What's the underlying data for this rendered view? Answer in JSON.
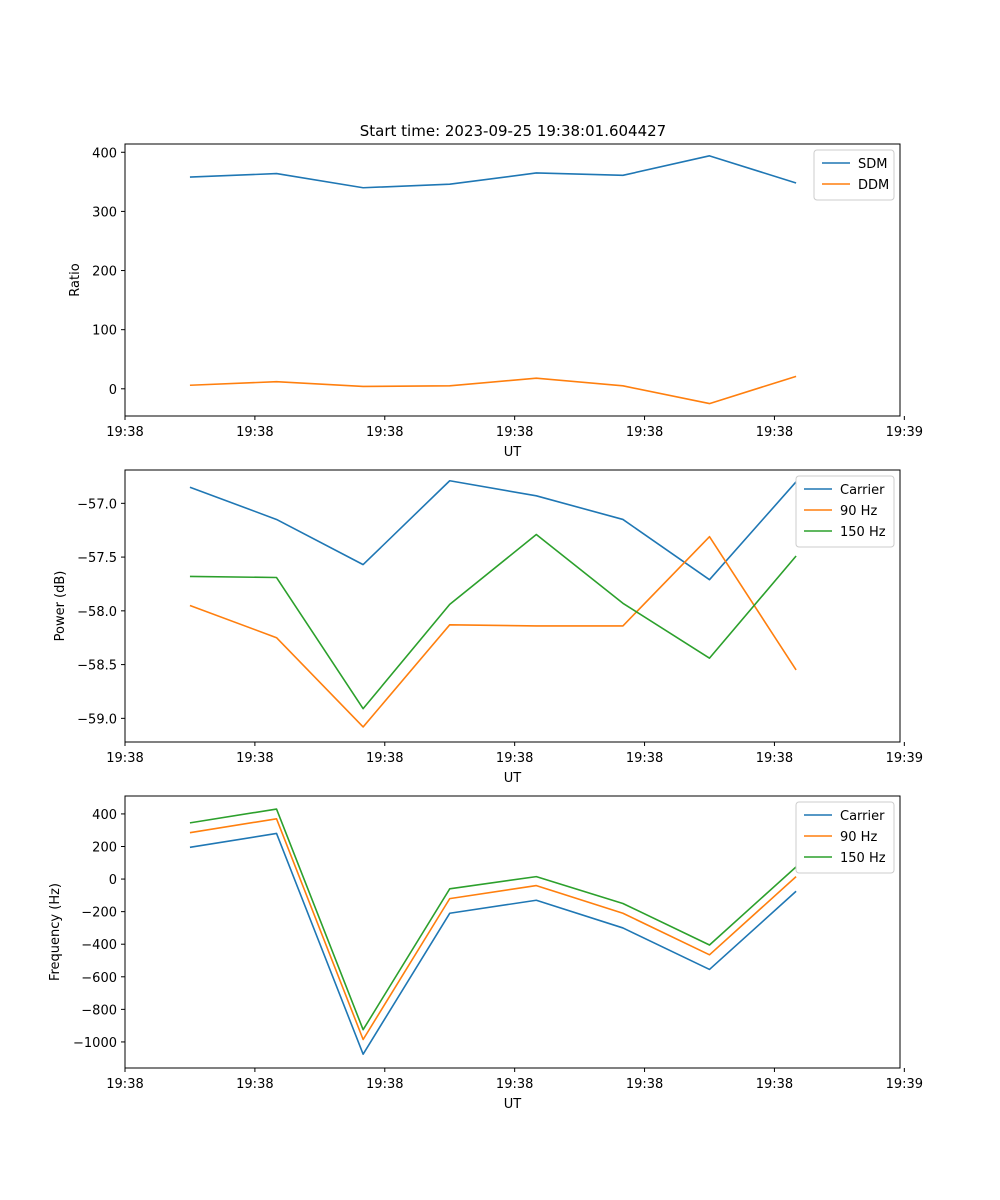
{
  "figure_title": "Start time: 2023-09-25 19:38:01.604427",
  "colors": {
    "c0": "#1f77b4",
    "c1": "#ff7f0e",
    "c2": "#2ca02c"
  },
  "chart_data": [
    {
      "type": "line",
      "title": "Start time: 2023-09-25 19:38:01.604427",
      "xlabel": "UT",
      "ylabel": "Ratio",
      "x": [
        1,
        2,
        3,
        4,
        5,
        6,
        7,
        8
      ],
      "xlim": [
        0.25,
        9.2
      ],
      "xticks": [
        0.25,
        1.75,
        3.25,
        4.75,
        6.25,
        7.75,
        9.25
      ],
      "xticklabels": [
        "19:38",
        "19:38",
        "19:38",
        "19:38",
        "19:38",
        "19:38",
        "19:39"
      ],
      "ylim": [
        -46,
        414
      ],
      "yticks": [
        0,
        100,
        200,
        300,
        400
      ],
      "yticklabels": [
        "0",
        "100",
        "200",
        "300",
        "400"
      ],
      "legend_position": "top-right",
      "series": [
        {
          "name": "SDM",
          "color": "#1f77b4",
          "values": [
            358,
            364,
            340,
            346,
            365,
            361,
            394,
            348
          ]
        },
        {
          "name": "DDM",
          "color": "#ff7f0e",
          "values": [
            6,
            12,
            4,
            5,
            18,
            5,
            -25,
            21
          ]
        }
      ]
    },
    {
      "type": "line",
      "title": "",
      "xlabel": "UT",
      "ylabel": "Power (dB)",
      "x": [
        1,
        2,
        3,
        4,
        5,
        6,
        7,
        8
      ],
      "xlim": [
        0.25,
        9.2
      ],
      "xticks": [
        0.25,
        1.75,
        3.25,
        4.75,
        6.25,
        7.75,
        9.25
      ],
      "xticklabels": [
        "19:38",
        "19:38",
        "19:38",
        "19:38",
        "19:38",
        "19:38",
        "19:39"
      ],
      "ylim": [
        -59.22,
        -56.69
      ],
      "yticks": [
        -59.0,
        -58.5,
        -58.0,
        -57.5,
        -57.0
      ],
      "yticklabels": [
        "−59.0",
        "−58.5",
        "−58.0",
        "−57.5",
        "−57.0"
      ],
      "legend_position": "top-right",
      "series": [
        {
          "name": "Carrier",
          "color": "#1f77b4",
          "values": [
            -56.85,
            -57.15,
            -57.57,
            -56.79,
            -56.93,
            -57.15,
            -57.71,
            -56.8
          ]
        },
        {
          "name": "90 Hz",
          "color": "#ff7f0e",
          "values": [
            -57.95,
            -58.25,
            -59.08,
            -58.13,
            -58.14,
            -58.14,
            -57.31,
            -58.55
          ]
        },
        {
          "name": "150 Hz",
          "color": "#2ca02c",
          "values": [
            -57.68,
            -57.69,
            -58.91,
            -57.94,
            -57.29,
            -57.93,
            -58.44,
            -57.49
          ]
        }
      ]
    },
    {
      "type": "line",
      "title": "",
      "xlabel": "UT",
      "ylabel": "Frequency (Hz)",
      "x": [
        1,
        2,
        3,
        4,
        5,
        6,
        7,
        8
      ],
      "xlim": [
        0.25,
        9.2
      ],
      "xticks": [
        0.25,
        1.75,
        3.25,
        4.75,
        6.25,
        7.75,
        9.25
      ],
      "xticklabels": [
        "19:38",
        "19:38",
        "19:38",
        "19:38",
        "19:38",
        "19:38",
        "19:39"
      ],
      "ylim": [
        -1160,
        510
      ],
      "yticks": [
        -1000,
        -800,
        -600,
        -400,
        -200,
        0,
        200,
        400
      ],
      "yticklabels": [
        "−1000",
        "−800",
        "−600",
        "−400",
        "−200",
        "0",
        "200",
        "400"
      ],
      "legend_position": "top-right",
      "series": [
        {
          "name": "Carrier",
          "color": "#1f77b4",
          "values": [
            195,
            280,
            -1075,
            -210,
            -130,
            -300,
            -555,
            -75
          ]
        },
        {
          "name": "90 Hz",
          "color": "#ff7f0e",
          "values": [
            285,
            370,
            -985,
            -120,
            -40,
            -210,
            -465,
            15
          ]
        },
        {
          "name": "150 Hz",
          "color": "#2ca02c",
          "values": [
            345,
            430,
            -925,
            -60,
            15,
            -150,
            -405,
            75
          ]
        }
      ]
    }
  ]
}
